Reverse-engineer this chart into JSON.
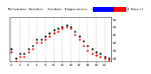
{
  "title": "Milwaukee Weather  Outdoor Temperature  vs Heat Index  (24 Hours)",
  "title_fontsize": 3.2,
  "background_color": "#ffffff",
  "plot_bg_color": "#ffffff",
  "grid_color": "#aaaaaa",
  "temp_color": "#000000",
  "heat_color": "#ff0000",
  "legend_temp_color": "#0000ff",
  "legend_heat_color": "#ff0000",
  "ylim": [
    28,
    56
  ],
  "yticks": [
    30,
    35,
    40,
    45,
    50,
    55
  ],
  "n_hours": 24,
  "temp_data": [
    36,
    30,
    33,
    33,
    36,
    38,
    42,
    42,
    44,
    46,
    48,
    49,
    50,
    51,
    50,
    47,
    44,
    41,
    38,
    36,
    34,
    33,
    31,
    30
  ],
  "heat_data": [
    34,
    28,
    31,
    31,
    34,
    36,
    40,
    40,
    42,
    44,
    46,
    47,
    49,
    50,
    49,
    45,
    42,
    38,
    35,
    33,
    32,
    31,
    30,
    29
  ]
}
